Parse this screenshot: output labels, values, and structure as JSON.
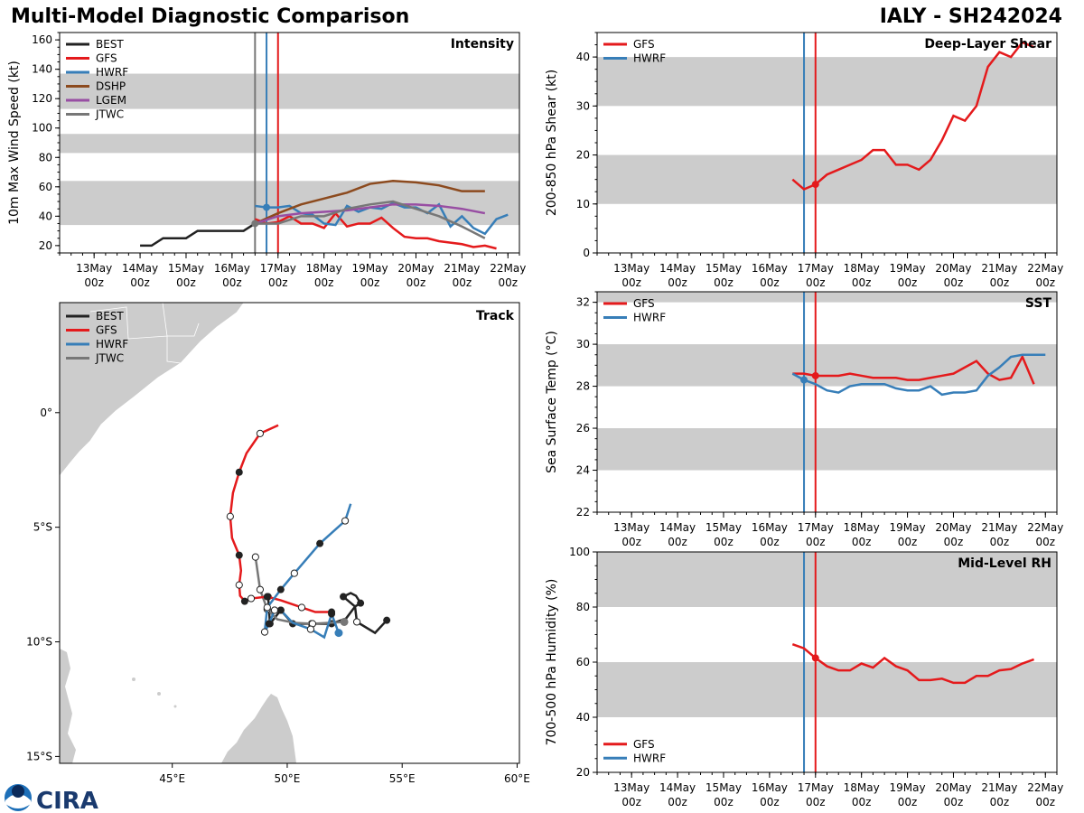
{
  "header": {
    "title": "Multi-Model Diagnostic Comparison",
    "storm": "IALY - SH242024"
  },
  "colors": {
    "BEST": "#222222",
    "GFS": "#e41a1c",
    "HWRF": "#377eb8",
    "DSHP": "#8c4a1e",
    "LGEM": "#984ea3",
    "JTWC": "#777777",
    "band": "#cccccc"
  },
  "time_axis": {
    "ticks": [
      "13May 00z",
      "14May 00z",
      "15May 00z",
      "16May 00z",
      "17May 00z",
      "18May 00z",
      "19May 00z",
      "20May 00z",
      "21May 00z",
      "22May 00z"
    ],
    "range": [
      "12May 06z",
      "22May 06z"
    ]
  },
  "chart_data": [
    {
      "type": "line",
      "title": "Intensity",
      "ylabel": "10m Max Wind Speed (kt)",
      "ylim": [
        15,
        165
      ],
      "yticks": [
        20,
        40,
        60,
        80,
        100,
        120,
        140,
        160
      ],
      "bands": [
        [
          34,
          64
        ],
        [
          83,
          96
        ],
        [
          113,
          137
        ]
      ],
      "legend": "top-left",
      "vlines": [
        {
          "model": "JTWC",
          "time": "16May 12z"
        },
        {
          "model": "HWRF",
          "time": "16May 18z"
        },
        {
          "model": "GFS",
          "time": "17May 00z"
        }
      ],
      "series": [
        {
          "name": "BEST",
          "start": "14May 00z",
          "interval_h": 6,
          "values": [
            20,
            20,
            25,
            25,
            25,
            30,
            30,
            30,
            30,
            30,
            35
          ]
        },
        {
          "name": "GFS",
          "start": "16May 12z",
          "interval_h": 6,
          "values": [
            38,
            35,
            36,
            40,
            35,
            35,
            32,
            42,
            33,
            35,
            35,
            39,
            32,
            26,
            25,
            25,
            23,
            22,
            21,
            19,
            20,
            18
          ]
        },
        {
          "name": "HWRF",
          "start": "16May 12z",
          "interval_h": 6,
          "values": [
            47,
            46,
            46,
            47,
            42,
            41,
            35,
            34,
            47,
            43,
            46,
            45,
            49,
            46,
            46,
            42,
            48,
            33,
            40,
            32,
            28,
            38,
            41
          ],
          "mark": "16May 18z"
        },
        {
          "name": "DSHP",
          "start": "16May 12z",
          "interval_h": 12,
          "values": [
            35,
            42,
            48,
            52,
            56,
            62,
            64,
            63,
            61,
            57,
            57
          ]
        },
        {
          "name": "LGEM",
          "start": "16May 12z",
          "interval_h": 12,
          "values": [
            35,
            40,
            42,
            43,
            44,
            46,
            48,
            48,
            47,
            45,
            42
          ]
        },
        {
          "name": "JTWC",
          "start": "16May 12z",
          "interval_h": 12,
          "values": [
            35,
            35,
            40,
            40,
            45,
            48,
            50,
            45,
            40,
            33,
            25
          ],
          "mark": "16May 12z"
        }
      ]
    },
    {
      "type": "line",
      "title": "Deep-Layer Shear",
      "ylabel": "200-850 hPa Shear (kt)",
      "ylim": [
        0,
        45
      ],
      "yticks": [
        0,
        10,
        20,
        30,
        40
      ],
      "bands": [
        [
          10,
          20
        ],
        [
          30,
          40
        ]
      ],
      "legend": "top-left",
      "vlines": [
        {
          "model": "HWRF",
          "time": "16May 18z"
        },
        {
          "model": "GFS",
          "time": "17May 00z"
        }
      ],
      "series": [
        {
          "name": "GFS",
          "start": "16May 12z",
          "interval_h": 6,
          "values": [
            15,
            13,
            14,
            16,
            17,
            18,
            19,
            21,
            21,
            18,
            18,
            17,
            19,
            23,
            28,
            27,
            30,
            38,
            41,
            40,
            43,
            42
          ],
          "mark": "17May 00z"
        },
        {
          "name": "HWRF",
          "start": "16May 12z",
          "interval_h": 6,
          "values": []
        }
      ]
    },
    {
      "type": "line",
      "title": "SST",
      "ylabel": "Sea Surface Temp (°C)",
      "ylim": [
        22,
        32.5
      ],
      "yticks": [
        22,
        24,
        26,
        28,
        30,
        32
      ],
      "bands": [
        [
          24,
          26
        ],
        [
          28,
          30
        ],
        [
          32,
          33
        ]
      ],
      "legend": "top-left",
      "vlines": [
        {
          "model": "HWRF",
          "time": "16May 18z"
        },
        {
          "model": "GFS",
          "time": "17May 00z"
        }
      ],
      "series": [
        {
          "name": "GFS",
          "start": "16May 12z",
          "interval_h": 6,
          "values": [
            28.6,
            28.6,
            28.5,
            28.5,
            28.5,
            28.6,
            28.5,
            28.4,
            28.4,
            28.4,
            28.3,
            28.3,
            28.4,
            28.5,
            28.6,
            28.9,
            29.2,
            28.6,
            28.3,
            28.4,
            29.4,
            28.1
          ],
          "mark": "17May 00z"
        },
        {
          "name": "HWRF",
          "start": "16May 12z",
          "interval_h": 6,
          "values": [
            28.6,
            28.3,
            28.1,
            27.8,
            27.7,
            28.0,
            28.1,
            28.1,
            28.1,
            27.9,
            27.8,
            27.8,
            28.0,
            27.6,
            27.7,
            27.7,
            27.8,
            28.5,
            28.9,
            29.4,
            29.5,
            29.5,
            29.5
          ],
          "mark": "16May 18z"
        }
      ]
    },
    {
      "type": "line",
      "title": "Mid-Level RH",
      "ylabel": "700-500 hPa Humidity (%)",
      "ylim": [
        20,
        100
      ],
      "yticks": [
        20,
        40,
        60,
        80,
        100
      ],
      "bands": [
        [
          40,
          60
        ],
        [
          80,
          100
        ]
      ],
      "legend": "bottom-left",
      "vlines": [
        {
          "model": "HWRF",
          "time": "16May 18z"
        },
        {
          "model": "GFS",
          "time": "17May 00z"
        }
      ],
      "series": [
        {
          "name": "GFS",
          "start": "16May 12z",
          "interval_h": 6,
          "values": [
            66.5,
            65,
            61.5,
            58.5,
            57,
            57,
            59.5,
            58,
            61.5,
            58.5,
            57,
            53.5,
            53.5,
            54,
            52.5,
            52.5,
            55,
            55,
            57,
            57.5,
            59.5,
            61
          ],
          "mark": "17May 00z"
        },
        {
          "name": "HWRF",
          "start": "16May 12z",
          "interval_h": 6,
          "values": []
        }
      ]
    },
    {
      "type": "scatter",
      "title": "Track",
      "lonlim": [
        40.1,
        60.1
      ],
      "latlim": [
        -15.3,
        4.8
      ],
      "xticks": [
        {
          "v": 45,
          "label": "45°E"
        },
        {
          "v": 50,
          "label": "50°E"
        },
        {
          "v": 55,
          "label": "55°E"
        },
        {
          "v": 60,
          "label": "60°E"
        }
      ],
      "yticks": [
        {
          "v": 0,
          "label": "0°"
        },
        {
          "v": -5,
          "label": "5°S"
        },
        {
          "v": -10,
          "label": "10°S"
        },
        {
          "v": -15,
          "label": "15°S"
        }
      ],
      "legend": "top-left",
      "series": [
        {
          "name": "BEST",
          "points": [
            [
              54.33,
              -9.06,
              "filled"
            ],
            [
              53.82,
              -9.61,
              ""
            ],
            [
              53.03,
              -9.13,
              "open"
            ],
            [
              52.95,
              -8.46,
              ""
            ],
            [
              53.19,
              -8.31,
              "filled"
            ],
            [
              52.99,
              -7.99,
              ""
            ],
            [
              52.76,
              -7.87,
              ""
            ],
            [
              52.44,
              -8.03,
              "filled"
            ],
            [
              52.95,
              -8.46,
              ""
            ],
            [
              52.56,
              -8.98,
              ""
            ],
            [
              51.93,
              -9.21,
              "filled"
            ],
            [
              51.06,
              -9.21,
              "open"
            ],
            [
              50.24,
              -9.21,
              "filled"
            ],
            [
              49.72,
              -8.62,
              "filled"
            ],
            [
              49.25,
              -9.21,
              "filled"
            ],
            [
              49.17,
              -8.03,
              "filled"
            ]
          ]
        },
        {
          "name": "GFS",
          "points": [
            [
              49.61,
              -0.55,
              ""
            ],
            [
              48.82,
              -0.91,
              "open"
            ],
            [
              48.23,
              -1.77,
              ""
            ],
            [
              47.91,
              -2.6,
              "filled"
            ],
            [
              47.64,
              -3.5,
              ""
            ],
            [
              47.52,
              -4.53,
              "open"
            ],
            [
              47.6,
              -5.47,
              ""
            ],
            [
              47.91,
              -6.22,
              "filled"
            ],
            [
              47.99,
              -6.89,
              ""
            ],
            [
              47.91,
              -7.52,
              "open"
            ],
            [
              47.95,
              -7.99,
              ""
            ],
            [
              48.15,
              -8.23,
              "filled"
            ],
            [
              48.43,
              -8.11,
              "open"
            ],
            [
              49.13,
              -8.03,
              "filled"
            ],
            [
              49.72,
              -8.19,
              ""
            ],
            [
              50.63,
              -8.5,
              "open"
            ],
            [
              51.22,
              -8.7,
              ""
            ],
            [
              51.93,
              -8.7,
              "filled"
            ]
          ]
        },
        {
          "name": "HWRF",
          "points": [
            [
              52.76,
              -3.98,
              ""
            ],
            [
              52.52,
              -4.72,
              "open"
            ],
            [
              51.42,
              -5.71,
              "filled"
            ],
            [
              50.31,
              -7.01,
              "open"
            ],
            [
              49.72,
              -7.72,
              "filled"
            ],
            [
              49.13,
              -8.5,
              "open"
            ],
            [
              49.02,
              -9.57,
              "open"
            ],
            [
              49.21,
              -9.21,
              "filled"
            ],
            [
              49.45,
              -8.62,
              "open"
            ],
            [
              49.72,
              -8.62,
              "filled"
            ],
            [
              50.24,
              -9.17,
              ""
            ],
            [
              51.02,
              -9.45,
              "open"
            ],
            [
              51.61,
              -9.8,
              ""
            ],
            [
              51.93,
              -8.78,
              "filled"
            ],
            [
              52.24,
              -9.61,
              "end"
            ]
          ]
        },
        {
          "name": "JTWC",
          "points": [
            [
              52.48,
              -9.13,
              "end"
            ],
            [
              51.1,
              -9.21,
              "open"
            ],
            [
              50.31,
              -9.17,
              ""
            ],
            [
              49.57,
              -9.02,
              ""
            ],
            [
              49.13,
              -8.58,
              "open"
            ],
            [
              48.82,
              -7.72,
              "open"
            ],
            [
              48.62,
              -6.3,
              "open"
            ]
          ]
        }
      ]
    }
  ]
}
